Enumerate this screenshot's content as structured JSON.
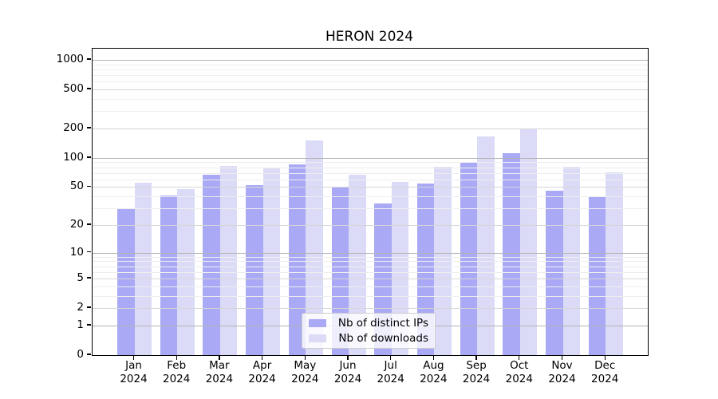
{
  "chart_data": {
    "type": "bar",
    "title": "HERON 2024",
    "categories": [
      "Jan",
      "Feb",
      "Mar",
      "Apr",
      "May",
      "Jun",
      "Jul",
      "Aug",
      "Sep",
      "Oct",
      "Nov",
      "Dec"
    ],
    "year_label": "2024",
    "series": [
      {
        "name": "Nb of distinct IPs",
        "color": "#a9a9f5",
        "values": [
          30,
          41,
          67,
          52,
          86,
          50,
          34,
          54,
          89,
          112,
          46,
          39
        ]
      },
      {
        "name": "Nb of downloads",
        "color": "#dbdbf8",
        "values": [
          55,
          48,
          83,
          78,
          151,
          67,
          57,
          81,
          166,
          198,
          81,
          71
        ]
      }
    ],
    "yscale": "log1p",
    "ylim": [
      0,
      1300
    ],
    "ytick_labels": [
      0,
      1,
      2,
      5,
      10,
      20,
      50,
      100,
      200,
      500,
      1000
    ],
    "yticks_minor": [
      3,
      4,
      6,
      7,
      8,
      9,
      30,
      40,
      60,
      70,
      80,
      90,
      300,
      400,
      600,
      700,
      800,
      900
    ],
    "grid": "both",
    "legend_position": "lower center"
  },
  "colors": {
    "grid_decade": "#b4b4b4",
    "grid_major": "#d6d6d6",
    "grid_minor": "#eeeeee",
    "axis": "#000000"
  }
}
